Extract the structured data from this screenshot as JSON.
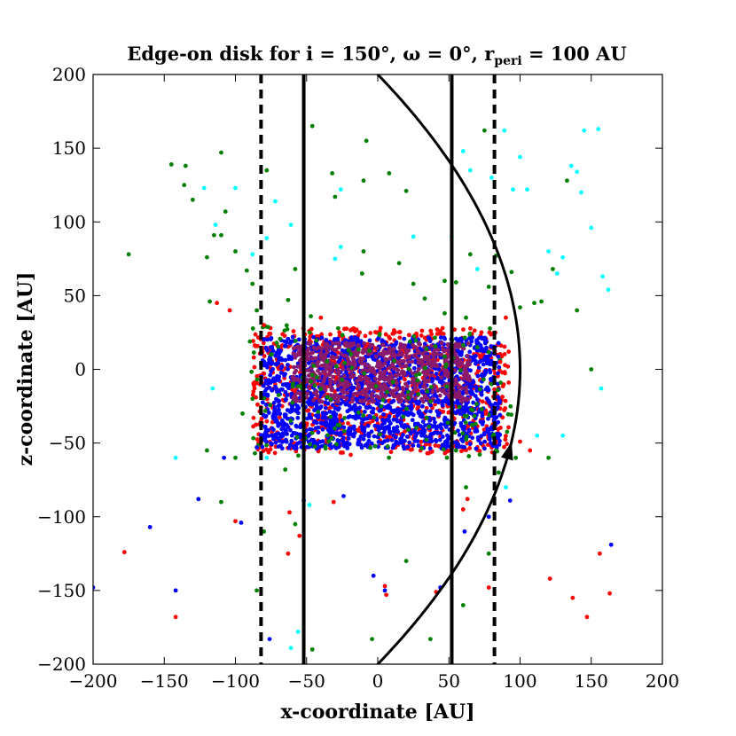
{
  "chart_data": {
    "type": "scatter",
    "title": "Edge-on disk for i = 150°, ω = 0°, r",
    "title_sub": "peri",
    "title_end": " = 100 AU",
    "xlabel": "x-coordinate [AU]",
    "ylabel": "z-coordinate [AU]",
    "xlim": [
      -200,
      200
    ],
    "ylim": [
      -200,
      200
    ],
    "xticks": [
      -200,
      -150,
      -100,
      -50,
      0,
      50,
      100,
      150,
      200
    ],
    "yticks": [
      -200,
      -150,
      -100,
      -50,
      0,
      50,
      100,
      150,
      200
    ],
    "grid": false,
    "colors": {
      "red": "#ff0000",
      "blue": "#0000ff",
      "green": "#008000",
      "cyan": "#00ffff",
      "core_mix": "#8b1a6b",
      "lines": "#000000"
    },
    "vertical_lines": [
      {
        "x": -82,
        "style": "dashed"
      },
      {
        "x": -52,
        "style": "solid"
      },
      {
        "x": 52,
        "style": "solid"
      },
      {
        "x": 82,
        "style": "dashed"
      }
    ],
    "orbit": {
      "r_peri": 100,
      "direction_arrow_near": {
        "x": 63,
        "z": -55
      }
    },
    "series": [
      {
        "color": "blue",
        "points": [
          [
            -200,
            -148
          ],
          [
            -160,
            -107
          ],
          [
            -142,
            -150
          ],
          [
            -126,
            -88
          ],
          [
            -108,
            -60
          ],
          [
            -96,
            -104
          ],
          [
            -85,
            -53
          ],
          [
            -76,
            -183
          ],
          [
            -52,
            -89
          ],
          [
            -24,
            -86
          ],
          [
            -3,
            -140
          ],
          [
            5,
            -150
          ],
          [
            44,
            -148
          ],
          [
            61,
            -110
          ],
          [
            78,
            -100
          ],
          [
            93,
            -89
          ],
          [
            164,
            -119
          ],
          [
            40,
            -43
          ],
          [
            -20,
            -40
          ],
          [
            10,
            -48
          ]
        ]
      },
      {
        "color": "red",
        "points": [
          [
            -178,
            -124
          ],
          [
            -142,
            -168
          ],
          [
            -100,
            -103
          ],
          [
            -62,
            -97
          ],
          [
            -63,
            -125
          ],
          [
            -55,
            -113
          ],
          [
            -19,
            -58
          ],
          [
            -31,
            -90
          ],
          [
            5,
            -147
          ],
          [
            6,
            -153
          ],
          [
            41,
            -151
          ],
          [
            60,
            -95
          ],
          [
            63,
            -88
          ],
          [
            78,
            -148
          ],
          [
            100,
            -49
          ],
          [
            107,
            -55
          ],
          [
            121,
            -142
          ],
          [
            137,
            -155
          ],
          [
            147,
            -168
          ],
          [
            156,
            -125
          ],
          [
            163,
            -152
          ],
          [
            -113,
            45
          ],
          [
            -104,
            40
          ],
          [
            -80,
            30
          ],
          [
            -40,
            35
          ],
          [
            90,
            35
          ],
          [
            92,
            12
          ],
          [
            86,
            5
          ],
          [
            76,
            -30
          ]
        ]
      },
      {
        "color": "green",
        "points": [
          [
            -175,
            78
          ],
          [
            -145,
            139
          ],
          [
            -136,
            125
          ],
          [
            -135,
            138
          ],
          [
            -130,
            115
          ],
          [
            -115,
            91
          ],
          [
            -110,
            91
          ],
          [
            -110,
            147
          ],
          [
            -107,
            107
          ],
          [
            -120,
            76
          ],
          [
            -118,
            46
          ],
          [
            -100,
            80
          ],
          [
            -92,
            67
          ],
          [
            -88,
            58
          ],
          [
            -85,
            40
          ],
          [
            -78,
            135
          ],
          [
            -71,
            18
          ],
          [
            -63,
            47
          ],
          [
            -58,
            68
          ],
          [
            -47,
            36
          ],
          [
            -46,
            165
          ],
          [
            -32,
            133
          ],
          [
            -30,
            117
          ],
          [
            -10,
            128
          ],
          [
            -10,
            80
          ],
          [
            -11,
            65
          ],
          [
            -8,
            155
          ],
          [
            8,
            133
          ],
          [
            15,
            72
          ],
          [
            20,
            121
          ],
          [
            25,
            58
          ],
          [
            33,
            48
          ],
          [
            47,
            60
          ],
          [
            47,
            38
          ],
          [
            55,
            59
          ],
          [
            62,
            35
          ],
          [
            65,
            78
          ],
          [
            75,
            162
          ],
          [
            78,
            56
          ],
          [
            83,
            77
          ],
          [
            94,
            66
          ],
          [
            100,
            42
          ],
          [
            110,
            45
          ],
          [
            115,
            46
          ],
          [
            123,
            68
          ],
          [
            133,
            128
          ],
          [
            140,
            40
          ],
          [
            150,
            0
          ],
          [
            -120,
            -55
          ],
          [
            -110,
            -90
          ],
          [
            -100,
            -60
          ],
          [
            -85,
            -150
          ],
          [
            -80,
            -110
          ],
          [
            -65,
            -68
          ],
          [
            -58,
            -105
          ],
          [
            -46,
            -190
          ],
          [
            -4,
            -183
          ],
          [
            20,
            -130
          ],
          [
            37,
            -183
          ],
          [
            55,
            -55
          ],
          [
            60,
            -160
          ],
          [
            62,
            -80
          ],
          [
            78,
            -125
          ],
          [
            85,
            -70
          ],
          [
            97,
            -60
          ],
          [
            120,
            -60
          ],
          [
            -95,
            -30
          ],
          [
            -88,
            -20
          ],
          [
            -75,
            10
          ],
          [
            70,
            15
          ],
          [
            80,
            -10
          ]
        ]
      },
      {
        "color": "cyan",
        "points": [
          [
            -142,
            -60
          ],
          [
            -122,
            123
          ],
          [
            -114,
            98
          ],
          [
            -116,
            -13
          ],
          [
            -100,
            123
          ],
          [
            -78,
            -60
          ],
          [
            -72,
            114
          ],
          [
            -61,
            98
          ],
          [
            -30,
            75
          ],
          [
            -48,
            -92
          ],
          [
            -61,
            -189
          ],
          [
            -56,
            -178
          ],
          [
            -26,
            122
          ],
          [
            -26,
            83
          ],
          [
            25,
            90
          ],
          [
            52,
            90
          ],
          [
            60,
            148
          ],
          [
            65,
            135
          ],
          [
            70,
            68
          ],
          [
            80,
            130
          ],
          [
            89,
            162
          ],
          [
            95,
            122
          ],
          [
            100,
            144
          ],
          [
            105,
            122
          ],
          [
            120,
            80
          ],
          [
            126,
            65
          ],
          [
            130,
            76
          ],
          [
            136,
            138
          ],
          [
            140,
            134
          ],
          [
            143,
            120
          ],
          [
            145,
            162
          ],
          [
            150,
            96
          ],
          [
            155,
            163
          ],
          [
            158,
            63
          ],
          [
            162,
            54
          ],
          [
            157,
            -13
          ],
          [
            112,
            -45
          ],
          [
            130,
            -45
          ],
          [
            90,
            -80
          ],
          [
            -78,
            89
          ],
          [
            -88,
            78
          ]
        ]
      }
    ]
  }
}
